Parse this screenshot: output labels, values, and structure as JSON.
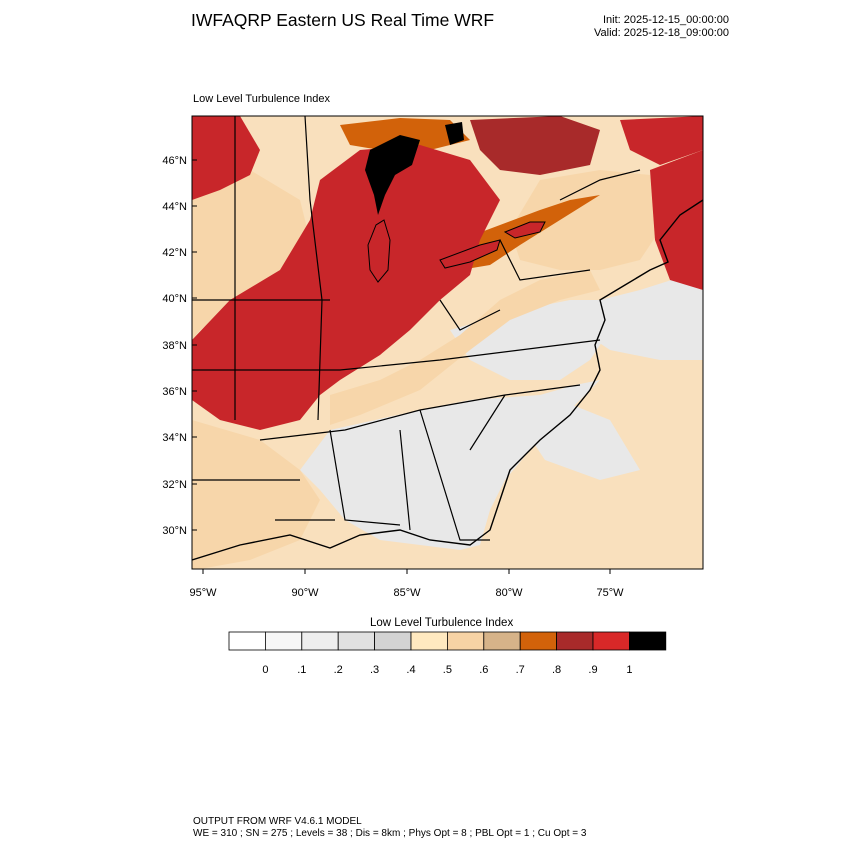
{
  "header": {
    "title": "IWFAQRP Eastern US Real Time WRF",
    "init_label": "Init: 2025-12-15_00:00:00",
    "valid_label": "Valid: 2025-12-18_09:00:00"
  },
  "map": {
    "field_title": "Low Level Turbulence Index",
    "lat_ticks": [
      "46°N",
      "44°N",
      "42°N",
      "40°N",
      "38°N",
      "36°N",
      "34°N",
      "32°N",
      "30°N"
    ],
    "lon_ticks": [
      "95°W",
      "90°W",
      "85°W",
      "80°W",
      "75°W"
    ],
    "colors": {
      "ocean": "#f9e0bd",
      "gulf": "#f8dcb6",
      "southeast_land": "#e8e8e8",
      "plains": "#f7d6aa",
      "midwest_red": "#c8262a",
      "dark_red": "#a82a2a",
      "orange": "#d2620a",
      "black": "#000000"
    }
  },
  "colorbar": {
    "title": "Low Level Turbulence Index",
    "labels": [
      "0",
      ".1",
      ".2",
      ".3",
      ".4",
      ".5",
      ".6",
      ".7",
      ".8",
      ".9",
      "1"
    ],
    "colors": [
      "#ffffff",
      "#f7f7f7",
      "#eeeeee",
      "#e1e1e1",
      "#d3d3d3",
      "#ffe9c0",
      "#f7d3a5",
      "#d6b389",
      "#d2620a",
      "#a82a2a",
      "#d82828",
      "#000000"
    ]
  },
  "footer": {
    "line1": "OUTPUT FROM WRF V4.6.1 MODEL",
    "line2": "WE = 310 ; SN = 275 ; Levels = 38 ; Dis = 8km ; Phys Opt = 8 ; PBL Opt = 1 ; Cu Opt = 3"
  }
}
